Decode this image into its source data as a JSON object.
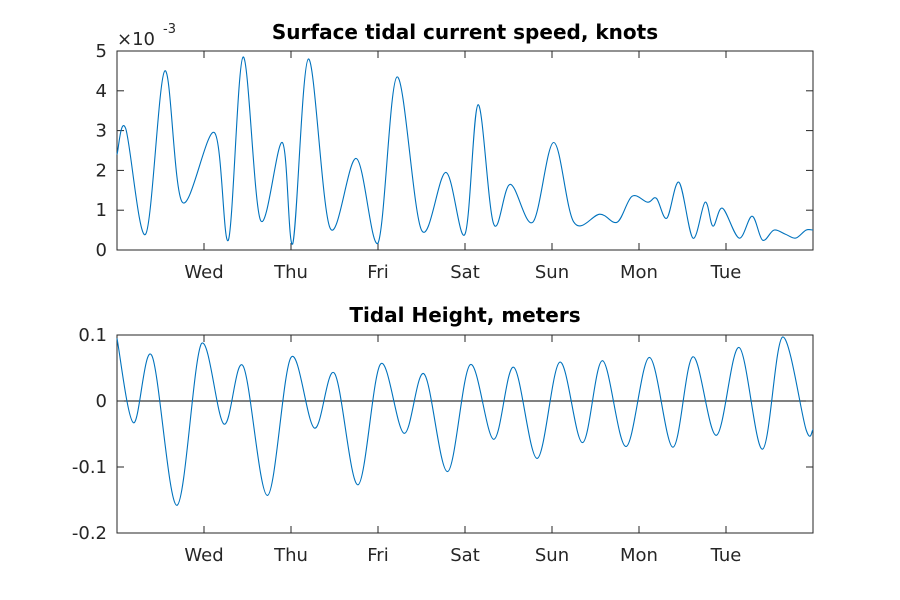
{
  "chart_data": [
    {
      "type": "line",
      "title": "Surface tidal current speed, knots",
      "exponent_label": {
        "base": "×10",
        "power": "-3"
      },
      "x_tick_labels": [
        "Wed",
        "Thu",
        "Fri",
        "Sat",
        "Sun",
        "Mon",
        "Tue"
      ],
      "xlim": [
        0,
        8
      ],
      "ylim": [
        0,
        5
      ],
      "y_ticks": [
        0,
        1,
        2,
        3,
        4,
        5
      ],
      "y_tick_labels": [
        "0",
        "1",
        "2",
        "3",
        "4",
        "5"
      ],
      "color": "#0072BD",
      "x": [
        0,
        0.1,
        0.33,
        0.55,
        0.75,
        1.12,
        1.28,
        1.45,
        1.65,
        1.9,
        2.02,
        2.2,
        2.45,
        2.75,
        3.0,
        3.22,
        3.5,
        3.78,
        4.0,
        4.15,
        4.33,
        4.52,
        4.78,
        5.02,
        5.25,
        5.55,
        5.75,
        5.92,
        6.1,
        6.2,
        6.32,
        6.46,
        6.62,
        6.76,
        6.85,
        6.96,
        7.15,
        7.3,
        7.42,
        7.55,
        7.68,
        7.8,
        7.92,
        8.0
      ],
      "y": [
        2.4,
        3.05,
        0.4,
        4.5,
        1.2,
        2.95,
        0.25,
        4.85,
        0.75,
        2.7,
        0.15,
        4.8,
        0.55,
        2.3,
        0.17,
        4.35,
        0.5,
        1.95,
        0.4,
        3.65,
        0.65,
        1.65,
        0.7,
        2.7,
        0.7,
        0.9,
        0.7,
        1.35,
        1.2,
        1.3,
        0.8,
        1.7,
        0.3,
        1.2,
        0.6,
        1.05,
        0.3,
        0.85,
        0.25,
        0.5,
        0.4,
        0.3,
        0.5,
        0.5
      ]
    },
    {
      "type": "line",
      "title": "Tidal Height, meters",
      "x_tick_labels": [
        "Wed",
        "Thu",
        "Fri",
        "Sat",
        "Sun",
        "Mon",
        "Tue"
      ],
      "xlim": [
        0,
        8
      ],
      "ylim": [
        -0.2,
        0.1
      ],
      "y_ticks": [
        -0.2,
        -0.1,
        0,
        0.1
      ],
      "y_tick_labels": [
        "-0.2",
        "-0.1",
        "0",
        "0.1"
      ],
      "color": "#0072BD",
      "zero_line": true,
      "x": [
        0,
        0.19,
        0.4,
        0.69,
        0.97,
        1.23,
        1.45,
        1.73,
        2.0,
        2.27,
        2.5,
        2.77,
        3.03,
        3.3,
        3.53,
        3.8,
        4.06,
        4.33,
        4.56,
        4.83,
        5.09,
        5.35,
        5.58,
        5.85,
        6.12,
        6.39,
        6.62,
        6.89,
        7.15,
        7.42,
        7.65,
        7.92,
        8.0
      ],
      "y": [
        0.095,
        -0.033,
        0.069,
        -0.158,
        0.087,
        -0.035,
        0.053,
        -0.143,
        0.066,
        -0.041,
        0.042,
        -0.127,
        0.056,
        -0.049,
        0.041,
        -0.107,
        0.055,
        -0.058,
        0.051,
        -0.087,
        0.059,
        -0.063,
        0.061,
        -0.069,
        0.066,
        -0.07,
        0.067,
        -0.052,
        0.081,
        -0.073,
        0.097,
        -0.043,
        -0.043
      ]
    }
  ]
}
